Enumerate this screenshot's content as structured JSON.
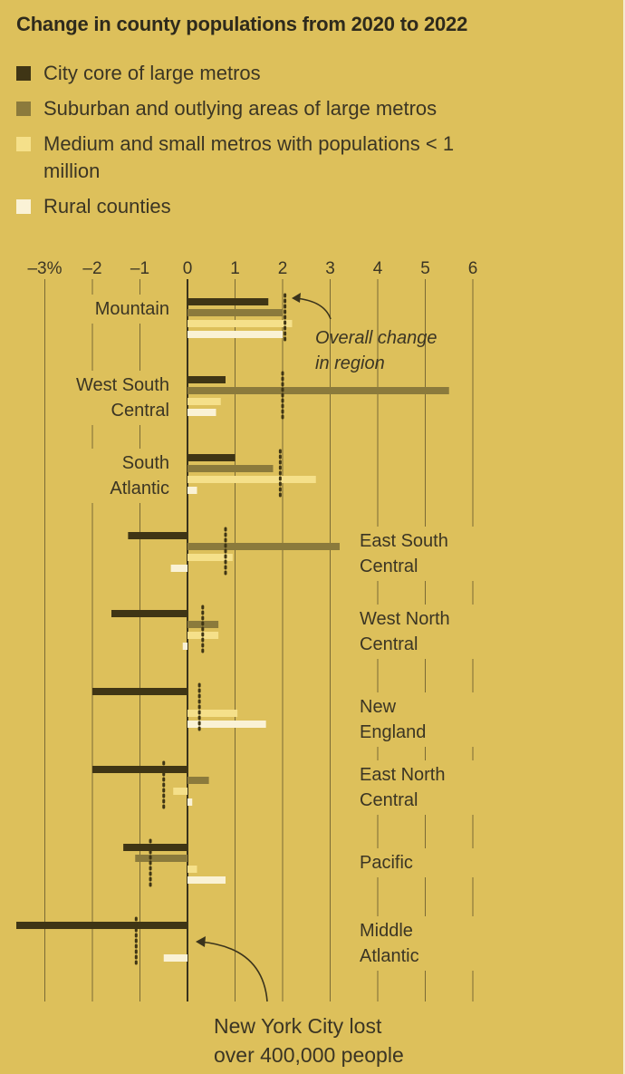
{
  "title": "Change in county populations from 2020 to 2022",
  "legend": [
    {
      "label": "City core of large metros",
      "color": "#3f3515"
    },
    {
      "label": "Suburban and outlying areas of large metros",
      "color": "#8b7a3c"
    },
    {
      "label": "Medium and small metros with populations < 1 million",
      "color": "#f5e08a"
    },
    {
      "label": "Rural counties",
      "color": "#faf2d6"
    }
  ],
  "colors": {
    "background": "#ddc05b",
    "gridline": "#7a6a34",
    "text": "#3b3524",
    "overall_marker": "#3f3515"
  },
  "chart_data": {
    "type": "bar",
    "orientation": "horizontal",
    "title": "Change in county populations from 2020 to 2022",
    "xlim": [
      -3.7,
      6
    ],
    "tick_values": [
      -3,
      -2,
      -1,
      0,
      1,
      2,
      3,
      4,
      5,
      6
    ],
    "tick_labels": [
      "–3%",
      "–2",
      "–1",
      "0",
      "1",
      "2",
      "3",
      "4",
      "5",
      "6"
    ],
    "grid": true,
    "legend_position": "top-left",
    "categories": [
      {
        "label": [
          "Mountain"
        ],
        "label_side": "left"
      },
      {
        "label": [
          "West South",
          "Central"
        ],
        "label_side": "left"
      },
      {
        "label": [
          "South",
          "Atlantic"
        ],
        "label_side": "left"
      },
      {
        "label": [
          "East South",
          "Central"
        ],
        "label_side": "right"
      },
      {
        "label": [
          "West North",
          "Central"
        ],
        "label_side": "right"
      },
      {
        "label": [
          "New",
          "England"
        ],
        "label_side": "right"
      },
      {
        "label": [
          "East North",
          "Central"
        ],
        "label_side": "right"
      },
      {
        "label": [
          "Pacific"
        ],
        "label_side": "right"
      },
      {
        "label": [
          "Middle",
          "Atlantic"
        ],
        "label_side": "right"
      }
    ],
    "series": [
      {
        "name": "City core of large metros",
        "values": [
          1.7,
          0.8,
          1.0,
          -1.25,
          -1.6,
          -2.0,
          -2.0,
          -1.35,
          -3.6
        ]
      },
      {
        "name": "Suburban and outlying areas of large metros",
        "values": [
          2.0,
          5.5,
          1.8,
          3.2,
          0.65,
          0.0,
          0.45,
          -1.1,
          0.0
        ]
      },
      {
        "name": "Medium and small metros with populations < 1 million",
        "values": [
          2.2,
          0.7,
          2.7,
          0.95,
          0.65,
          1.05,
          -0.3,
          0.2,
          0.0
        ]
      },
      {
        "name": "Rural counties",
        "values": [
          2.0,
          0.6,
          0.2,
          -0.35,
          -0.1,
          1.65,
          0.1,
          0.8,
          -0.5
        ]
      }
    ],
    "overall_change": [
      2.05,
      2.0,
      1.95,
      0.8,
      0.32,
      0.25,
      -0.5,
      -0.78,
      -1.08
    ],
    "annotations": [
      {
        "text": [
          "Overall change",
          "in region"
        ],
        "style": "italic"
      },
      {
        "text": [
          "New York City lost",
          "over 400,000 people"
        ],
        "style": "normal"
      }
    ]
  }
}
